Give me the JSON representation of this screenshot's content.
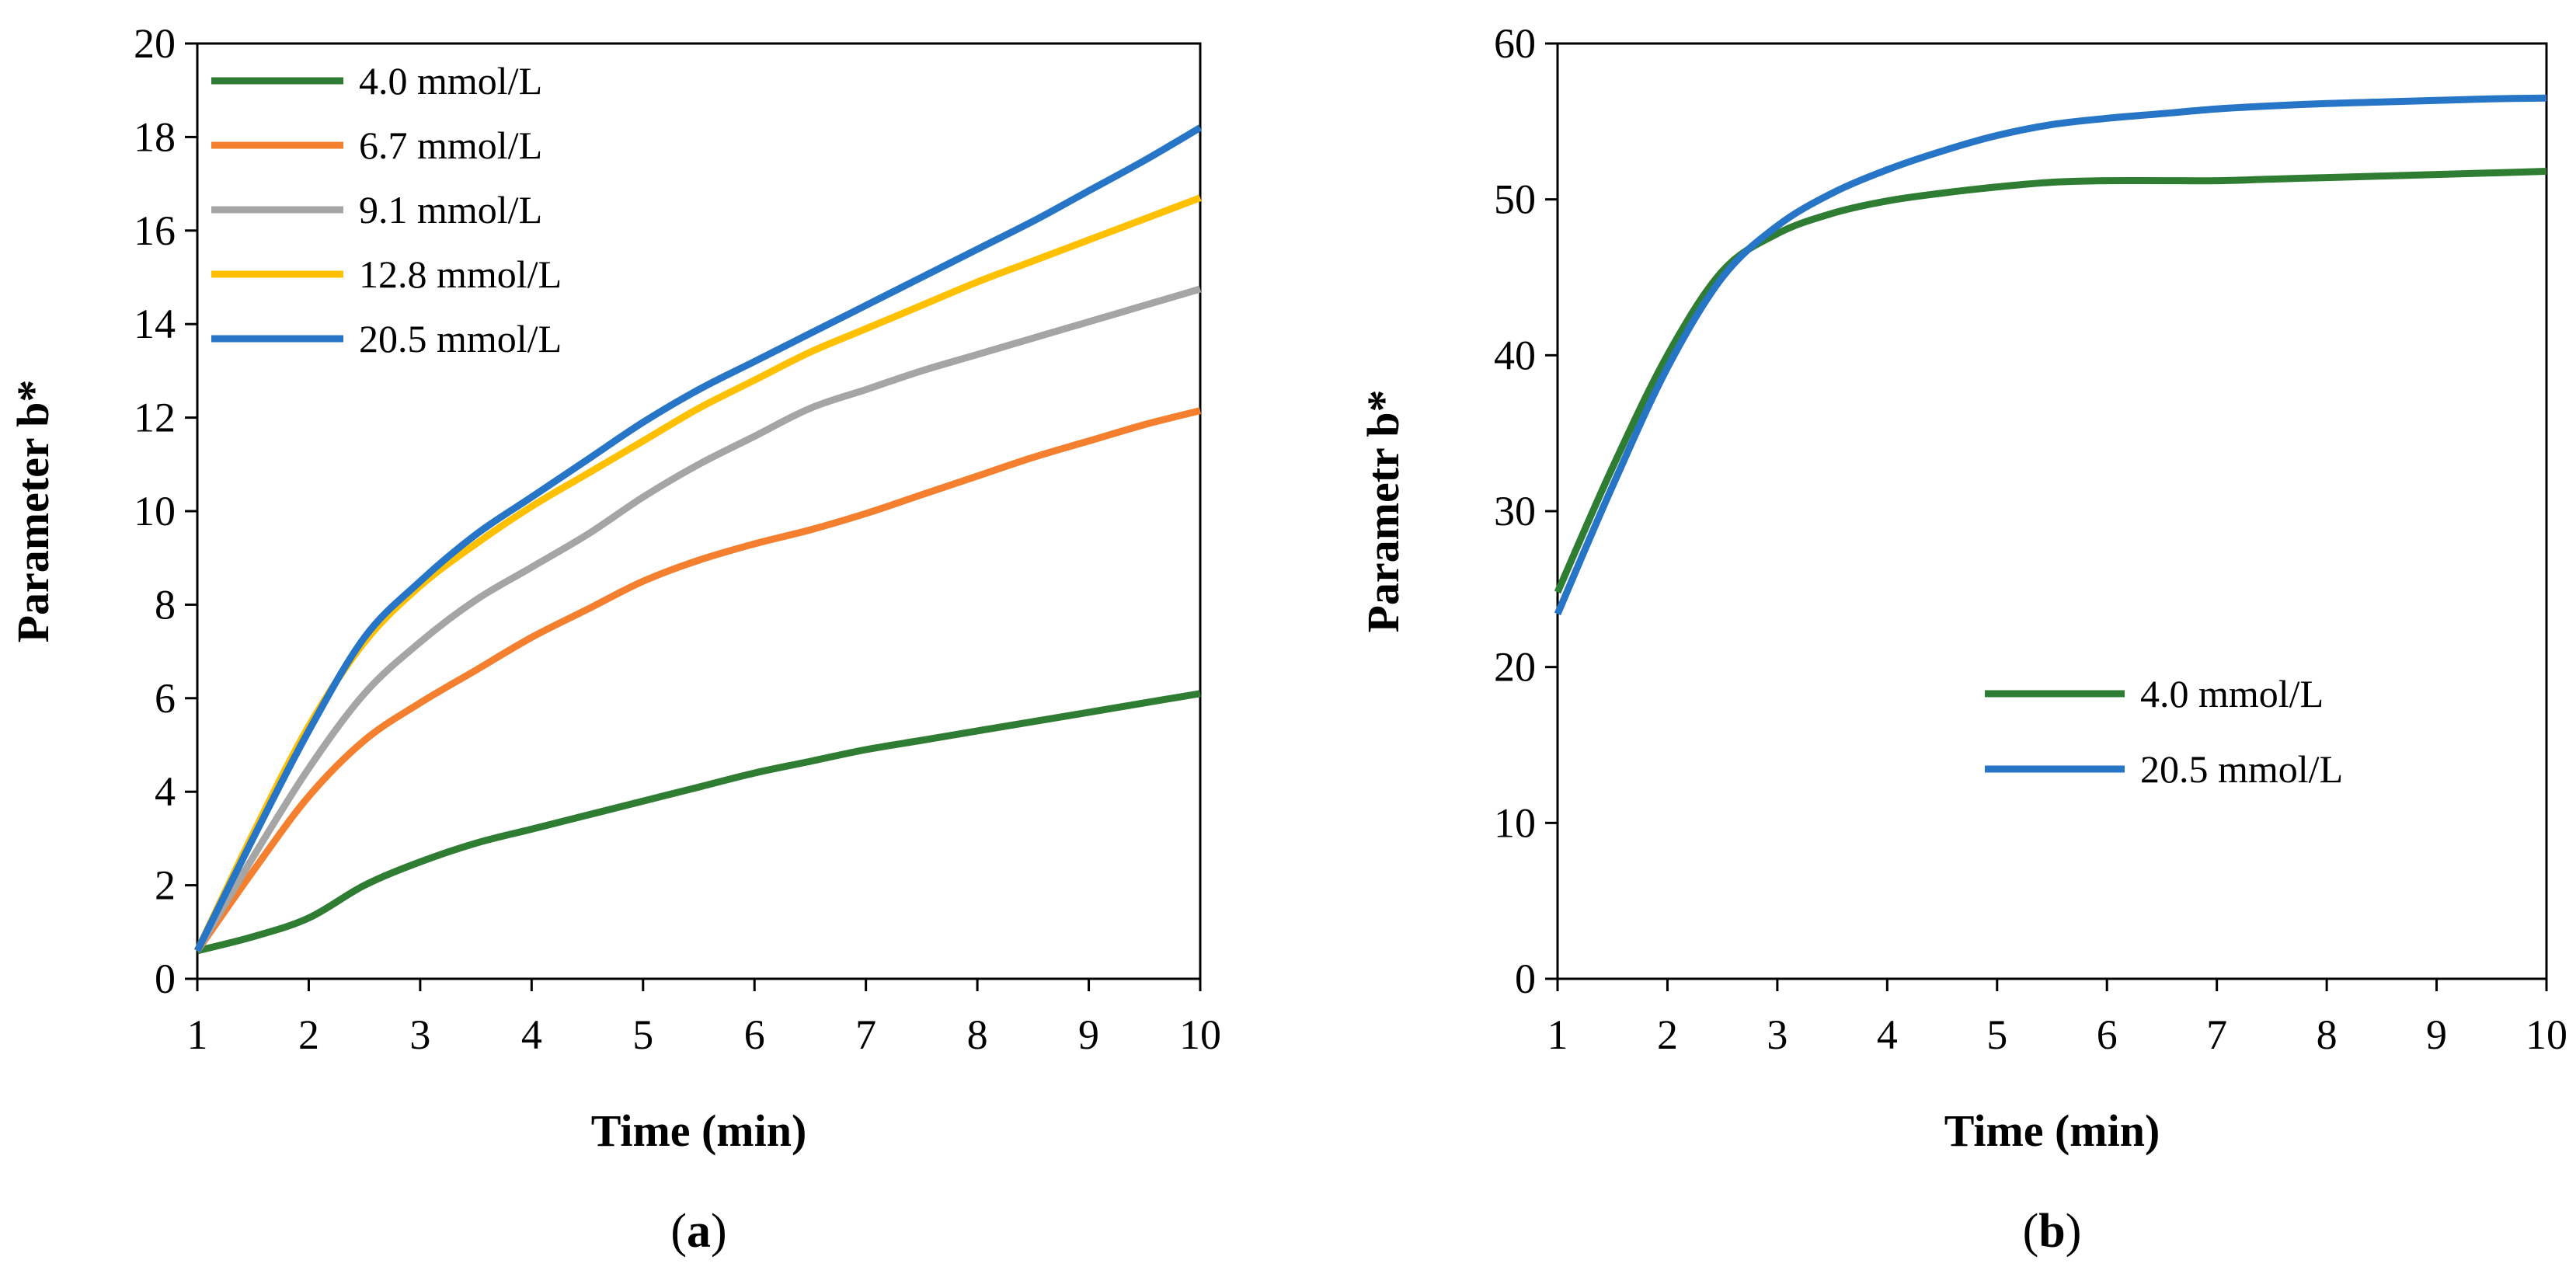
{
  "chart_data": [
    {
      "panel": "a",
      "type": "line",
      "caption": {
        "open": "(",
        "letter": "a",
        "close": ")"
      },
      "xlabel": "Time (min)",
      "ylabel": "Parameter b*",
      "xlim": [
        1,
        10
      ],
      "ylim": [
        0,
        20
      ],
      "xticks": [
        1,
        2,
        3,
        4,
        5,
        6,
        7,
        8,
        9,
        10
      ],
      "yticks": [
        0,
        2,
        4,
        6,
        8,
        10,
        12,
        14,
        16,
        18,
        20
      ],
      "grid": false,
      "legend": "top-left",
      "x": [
        1,
        1.5,
        2,
        2.5,
        3,
        3.5,
        4,
        4.5,
        5,
        5.5,
        6,
        6.5,
        7,
        7.5,
        8,
        8.5,
        9,
        9.5,
        10
      ],
      "series": [
        {
          "name": "4.0 mmol/L",
          "color": "#2e7d32",
          "values": [
            0.6,
            0.9,
            1.3,
            2.0,
            2.5,
            2.9,
            3.2,
            3.5,
            3.8,
            4.1,
            4.4,
            4.65,
            4.9,
            5.1,
            5.3,
            5.5,
            5.7,
            5.9,
            6.1
          ]
        },
        {
          "name": "6.7 mmol/L",
          "color": "#f4802f",
          "values": [
            0.6,
            2.3,
            3.9,
            5.1,
            5.9,
            6.6,
            7.3,
            7.9,
            8.5,
            8.95,
            9.3,
            9.6,
            9.95,
            10.35,
            10.75,
            11.15,
            11.5,
            11.85,
            12.15
          ]
        },
        {
          "name": "9.1 mmol/L",
          "color": "#a5a5a5",
          "values": [
            0.6,
            2.6,
            4.5,
            6.1,
            7.2,
            8.1,
            8.8,
            9.5,
            10.3,
            11.0,
            11.6,
            12.2,
            12.6,
            13.0,
            13.35,
            13.7,
            14.05,
            14.4,
            14.75
          ]
        },
        {
          "name": "12.8 mmol/L",
          "color": "#ffc000",
          "values": [
            0.6,
            3.1,
            5.4,
            7.2,
            8.4,
            9.3,
            10.1,
            10.8,
            11.5,
            12.2,
            12.8,
            13.4,
            13.9,
            14.4,
            14.9,
            15.35,
            15.8,
            16.25,
            16.7
          ]
        },
        {
          "name": "20.5 mmol/L",
          "color": "#2775c6",
          "values": [
            0.6,
            3.0,
            5.3,
            7.3,
            8.5,
            9.5,
            10.3,
            11.1,
            11.9,
            12.6,
            13.2,
            13.8,
            14.4,
            15.0,
            15.6,
            16.2,
            16.85,
            17.5,
            18.2
          ]
        }
      ]
    },
    {
      "panel": "b",
      "type": "line",
      "caption": {
        "open": "(",
        "letter": "b",
        "close": ")"
      },
      "xlabel": "Time (min)",
      "ylabel": "Parametr b*",
      "xlim": [
        1,
        10
      ],
      "ylim": [
        0,
        60
      ],
      "xticks": [
        1,
        2,
        3,
        4,
        5,
        6,
        7,
        8,
        9,
        10
      ],
      "yticks": [
        0,
        10,
        20,
        30,
        40,
        50,
        60
      ],
      "grid": false,
      "legend": "lower-right",
      "x": [
        1,
        1.5,
        2,
        2.5,
        3,
        3.5,
        4,
        4.5,
        5,
        5.5,
        6,
        6.5,
        7,
        7.5,
        8,
        8.5,
        9,
        9.5,
        10
      ],
      "series": [
        {
          "name": "4.0 mmol/L",
          "color": "#2e7d32",
          "values": [
            24.8,
            32.8,
            40.0,
            45.4,
            47.8,
            49.1,
            49.9,
            50.4,
            50.8,
            51.1,
            51.2,
            51.2,
            51.2,
            51.3,
            51.4,
            51.5,
            51.6,
            51.7,
            51.8
          ]
        },
        {
          "name": "20.5 mmol/L",
          "color": "#2775c6",
          "values": [
            23.4,
            31.6,
            39.2,
            45.0,
            48.3,
            50.4,
            51.9,
            53.1,
            54.1,
            54.8,
            55.2,
            55.5,
            55.8,
            56.0,
            56.15,
            56.25,
            56.35,
            56.45,
            56.5
          ]
        }
      ]
    }
  ]
}
